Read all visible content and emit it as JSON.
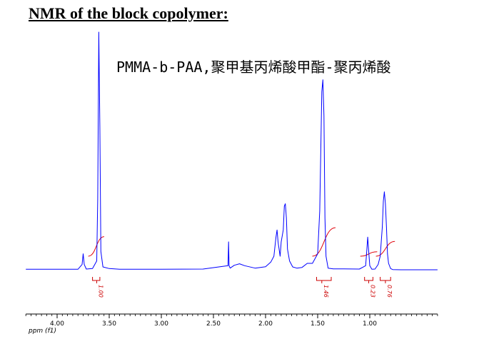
{
  "title": "NMR of the block copolymer:",
  "chart_data": {
    "type": "line",
    "title": "PMMA-b-PAA,聚甲基丙烯酸甲酯-聚丙烯酸",
    "xlabel": "ppm (f1)",
    "xlim": [
      4.3,
      0.35
    ],
    "x_reversed": true,
    "ylim": [
      0,
      100
    ],
    "x_ticks": [
      "4.00",
      "3.50",
      "3.00",
      "2.50",
      "2.00",
      "1.50",
      "1.00"
    ],
    "x_tick_values": [
      4.0,
      3.5,
      3.0,
      2.5,
      2.0,
      1.5,
      1.0
    ],
    "series": [
      {
        "color": "#0000ff",
        "x": [
          4.3,
          3.8,
          3.76,
          3.75,
          3.74,
          3.72,
          3.66,
          3.62,
          3.61,
          3.6,
          3.59,
          3.58,
          3.56,
          3.5,
          3.4,
          3.0,
          2.6,
          2.36,
          2.355,
          2.35,
          2.34,
          2.3,
          2.25,
          2.2,
          2.1,
          2.0,
          1.95,
          1.92,
          1.9,
          1.89,
          1.88,
          1.86,
          1.85,
          1.83,
          1.82,
          1.81,
          1.8,
          1.79,
          1.77,
          1.74,
          1.7,
          1.65,
          1.6,
          1.55,
          1.5,
          1.48,
          1.46,
          1.45,
          1.44,
          1.43,
          1.42,
          1.4,
          1.35,
          1.25,
          1.1,
          1.04,
          1.03,
          1.02,
          1.01,
          1.0,
          0.98,
          0.95,
          0.92,
          0.9,
          0.88,
          0.87,
          0.86,
          0.85,
          0.84,
          0.83,
          0.82,
          0.8,
          0.78,
          0.7,
          0.6,
          0.35
        ],
        "y": [
          0.5,
          0.5,
          2.5,
          7.0,
          2.5,
          0.6,
          0.8,
          4.0,
          30.0,
          100.0,
          60.0,
          8.0,
          1.5,
          0.8,
          0.5,
          0.5,
          0.6,
          2.0,
          12.0,
          2.0,
          1.0,
          2.2,
          2.8,
          2.0,
          1.0,
          1.6,
          3.5,
          6.0,
          14.0,
          17.0,
          12.0,
          6.0,
          12.0,
          17.0,
          27.0,
          28.0,
          22.0,
          9.0,
          4.0,
          1.5,
          1.0,
          1.3,
          3.0,
          3.0,
          7.0,
          25.0,
          75.0,
          80.0,
          65.0,
          22.0,
          6.0,
          1.0,
          0.7,
          0.7,
          0.6,
          2.0,
          7.5,
          14.0,
          8.0,
          2.0,
          0.5,
          0.6,
          2.5,
          6.0,
          18.0,
          29.0,
          33.0,
          28.0,
          18.0,
          7.0,
          3.0,
          0.8,
          0.4,
          0.3,
          0.3,
          0.3
        ]
      }
    ],
    "integrals": [
      {
        "label": "1.00",
        "from": 3.66,
        "to": 3.59,
        "center": 3.62
      },
      {
        "label": "1.46",
        "from": 1.51,
        "to": 1.37,
        "center": 1.46
      },
      {
        "label": "0.23",
        "from": 1.05,
        "to": 0.97,
        "center": 1.01
      },
      {
        "label": "0.76",
        "from": 0.9,
        "to": 0.8,
        "center": 0.85
      }
    ]
  }
}
